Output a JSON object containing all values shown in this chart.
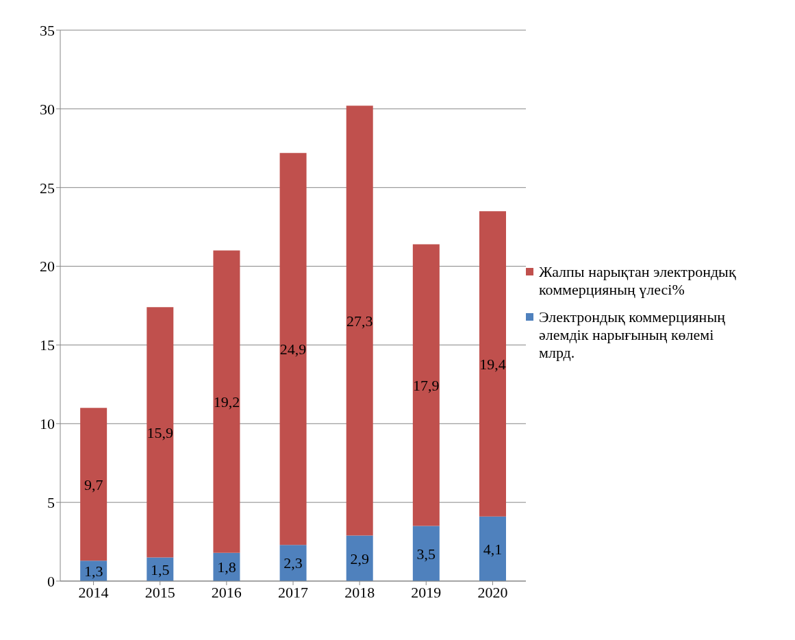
{
  "chart_data": {
    "type": "bar",
    "stacked": true,
    "categories": [
      "2014",
      "2015",
      "2016",
      "2017",
      "2018",
      "2019",
      "2020"
    ],
    "series": [
      {
        "name": "Электрондық коммерцияның әлемдік нарығының көлемі млрд.",
        "color": "#4f81bd",
        "values": [
          1.3,
          1.5,
          1.8,
          2.3,
          2.9,
          3.5,
          4.1
        ],
        "value_labels": [
          "1,3",
          "1,5",
          "1,8",
          "2,3",
          "2,9",
          "3,5",
          "4,1"
        ]
      },
      {
        "name": "Жалпы нарықтан электрондық коммерцияның үлесі%",
        "color": "#c0504d",
        "values": [
          9.7,
          15.9,
          19.2,
          24.9,
          27.3,
          17.9,
          19.4
        ],
        "value_labels": [
          "9,7",
          "15,9",
          "19,2",
          "24,9",
          "27,3",
          "17,9",
          "19,4"
        ]
      }
    ],
    "ylim": [
      0,
      35
    ],
    "yticks": [
      0,
      5,
      10,
      15,
      20,
      25,
      30,
      35
    ],
    "grid": "y",
    "legend": "right"
  }
}
